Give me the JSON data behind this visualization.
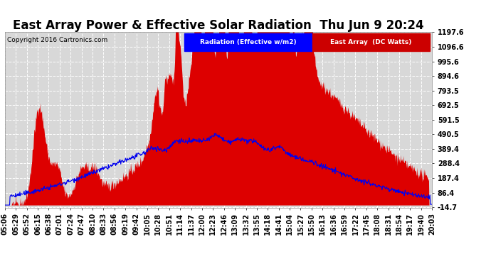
{
  "title": "East Array Power & Effective Solar Radiation  Thu Jun 9 20:24",
  "copyright": "Copyright 2016 Cartronics.com",
  "legend_radiation": "Radiation (Effective w/m2)",
  "legend_array": "East Array  (DC Watts)",
  "ylim_min": -14.7,
  "ylim_max": 1197.6,
  "yticks": [
    -14.7,
    86.4,
    187.4,
    288.4,
    389.4,
    490.5,
    591.5,
    692.5,
    793.5,
    894.6,
    995.6,
    1096.6,
    1197.6
  ],
  "background_color": "#ffffff",
  "plot_bg_color": "#d8d8d8",
  "grid_color": "#ffffff",
  "fill_color": "#dd0000",
  "line_color": "#0000ee",
  "title_fontsize": 12,
  "tick_fontsize": 7,
  "xtick_labels": [
    "05:06",
    "05:29",
    "05:52",
    "06:15",
    "06:38",
    "07:01",
    "07:24",
    "07:47",
    "08:10",
    "08:33",
    "08:56",
    "09:19",
    "09:42",
    "10:05",
    "10:28",
    "10:51",
    "11:14",
    "11:37",
    "12:00",
    "12:23",
    "12:46",
    "13:09",
    "13:32",
    "13:55",
    "14:18",
    "14:41",
    "15:04",
    "15:27",
    "15:50",
    "16:13",
    "16:36",
    "16:59",
    "17:22",
    "17:45",
    "18:08",
    "18:31",
    "18:54",
    "19:17",
    "19:40",
    "20:03"
  ]
}
